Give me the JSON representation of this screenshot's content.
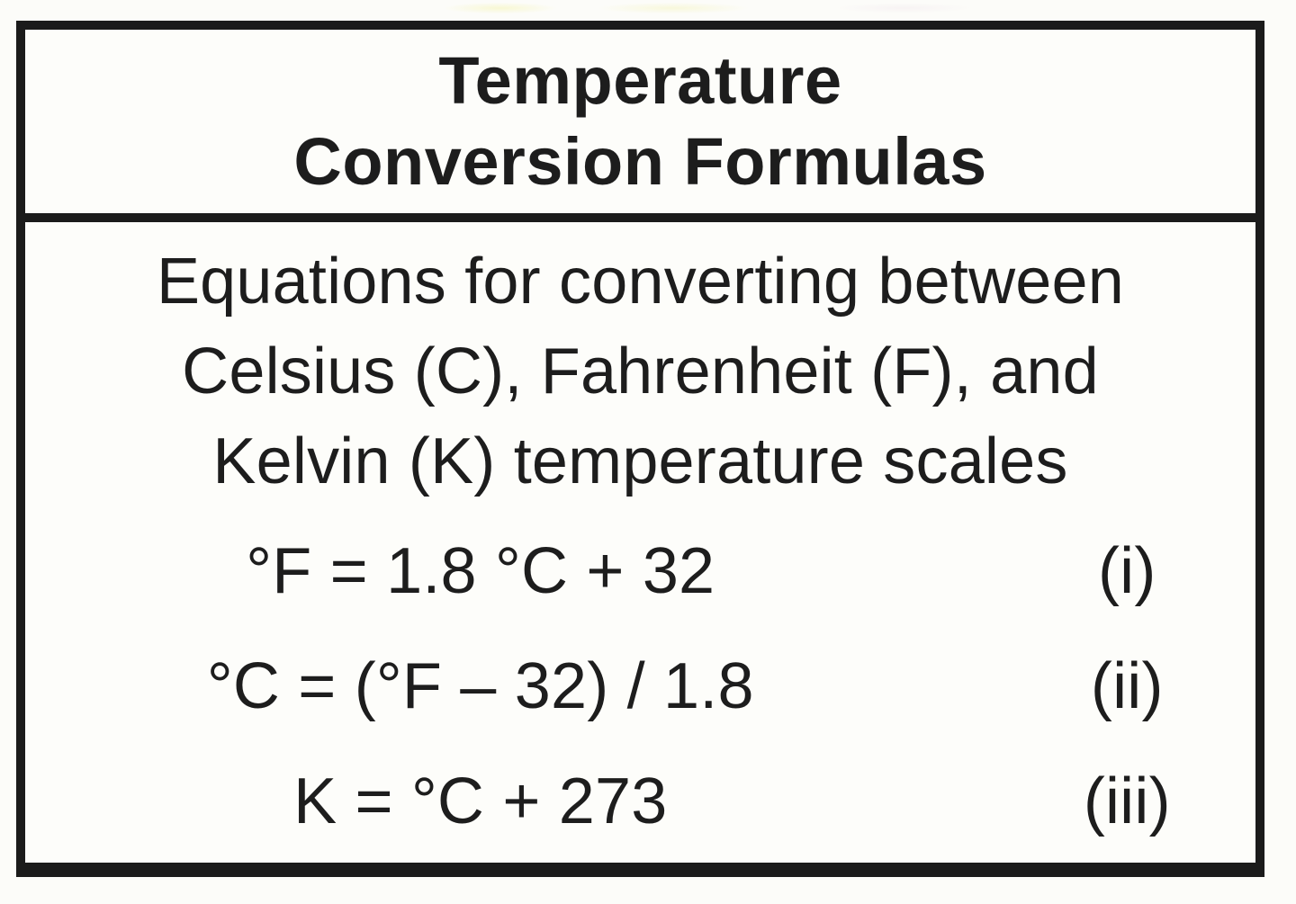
{
  "table": {
    "title_line1": "Temperature",
    "title_line2": "Conversion Formulas",
    "description_lines": [
      "Equations for converting between",
      "Celsius (C), Fahrenheit (F), and",
      "Kelvin (K) temperature scales"
    ],
    "equations": [
      {
        "formula": "°F = 1.8 °C + 32",
        "number": "(i)"
      },
      {
        "formula": "°C = (°F – 32) / 1.8",
        "number": "(ii)"
      },
      {
        "formula": "K = °C + 273",
        "number": "(iii)"
      }
    ],
    "colors": {
      "border": "#1b1b1b",
      "text": "#1d1d1d",
      "background": "#fdfdfa"
    }
  }
}
